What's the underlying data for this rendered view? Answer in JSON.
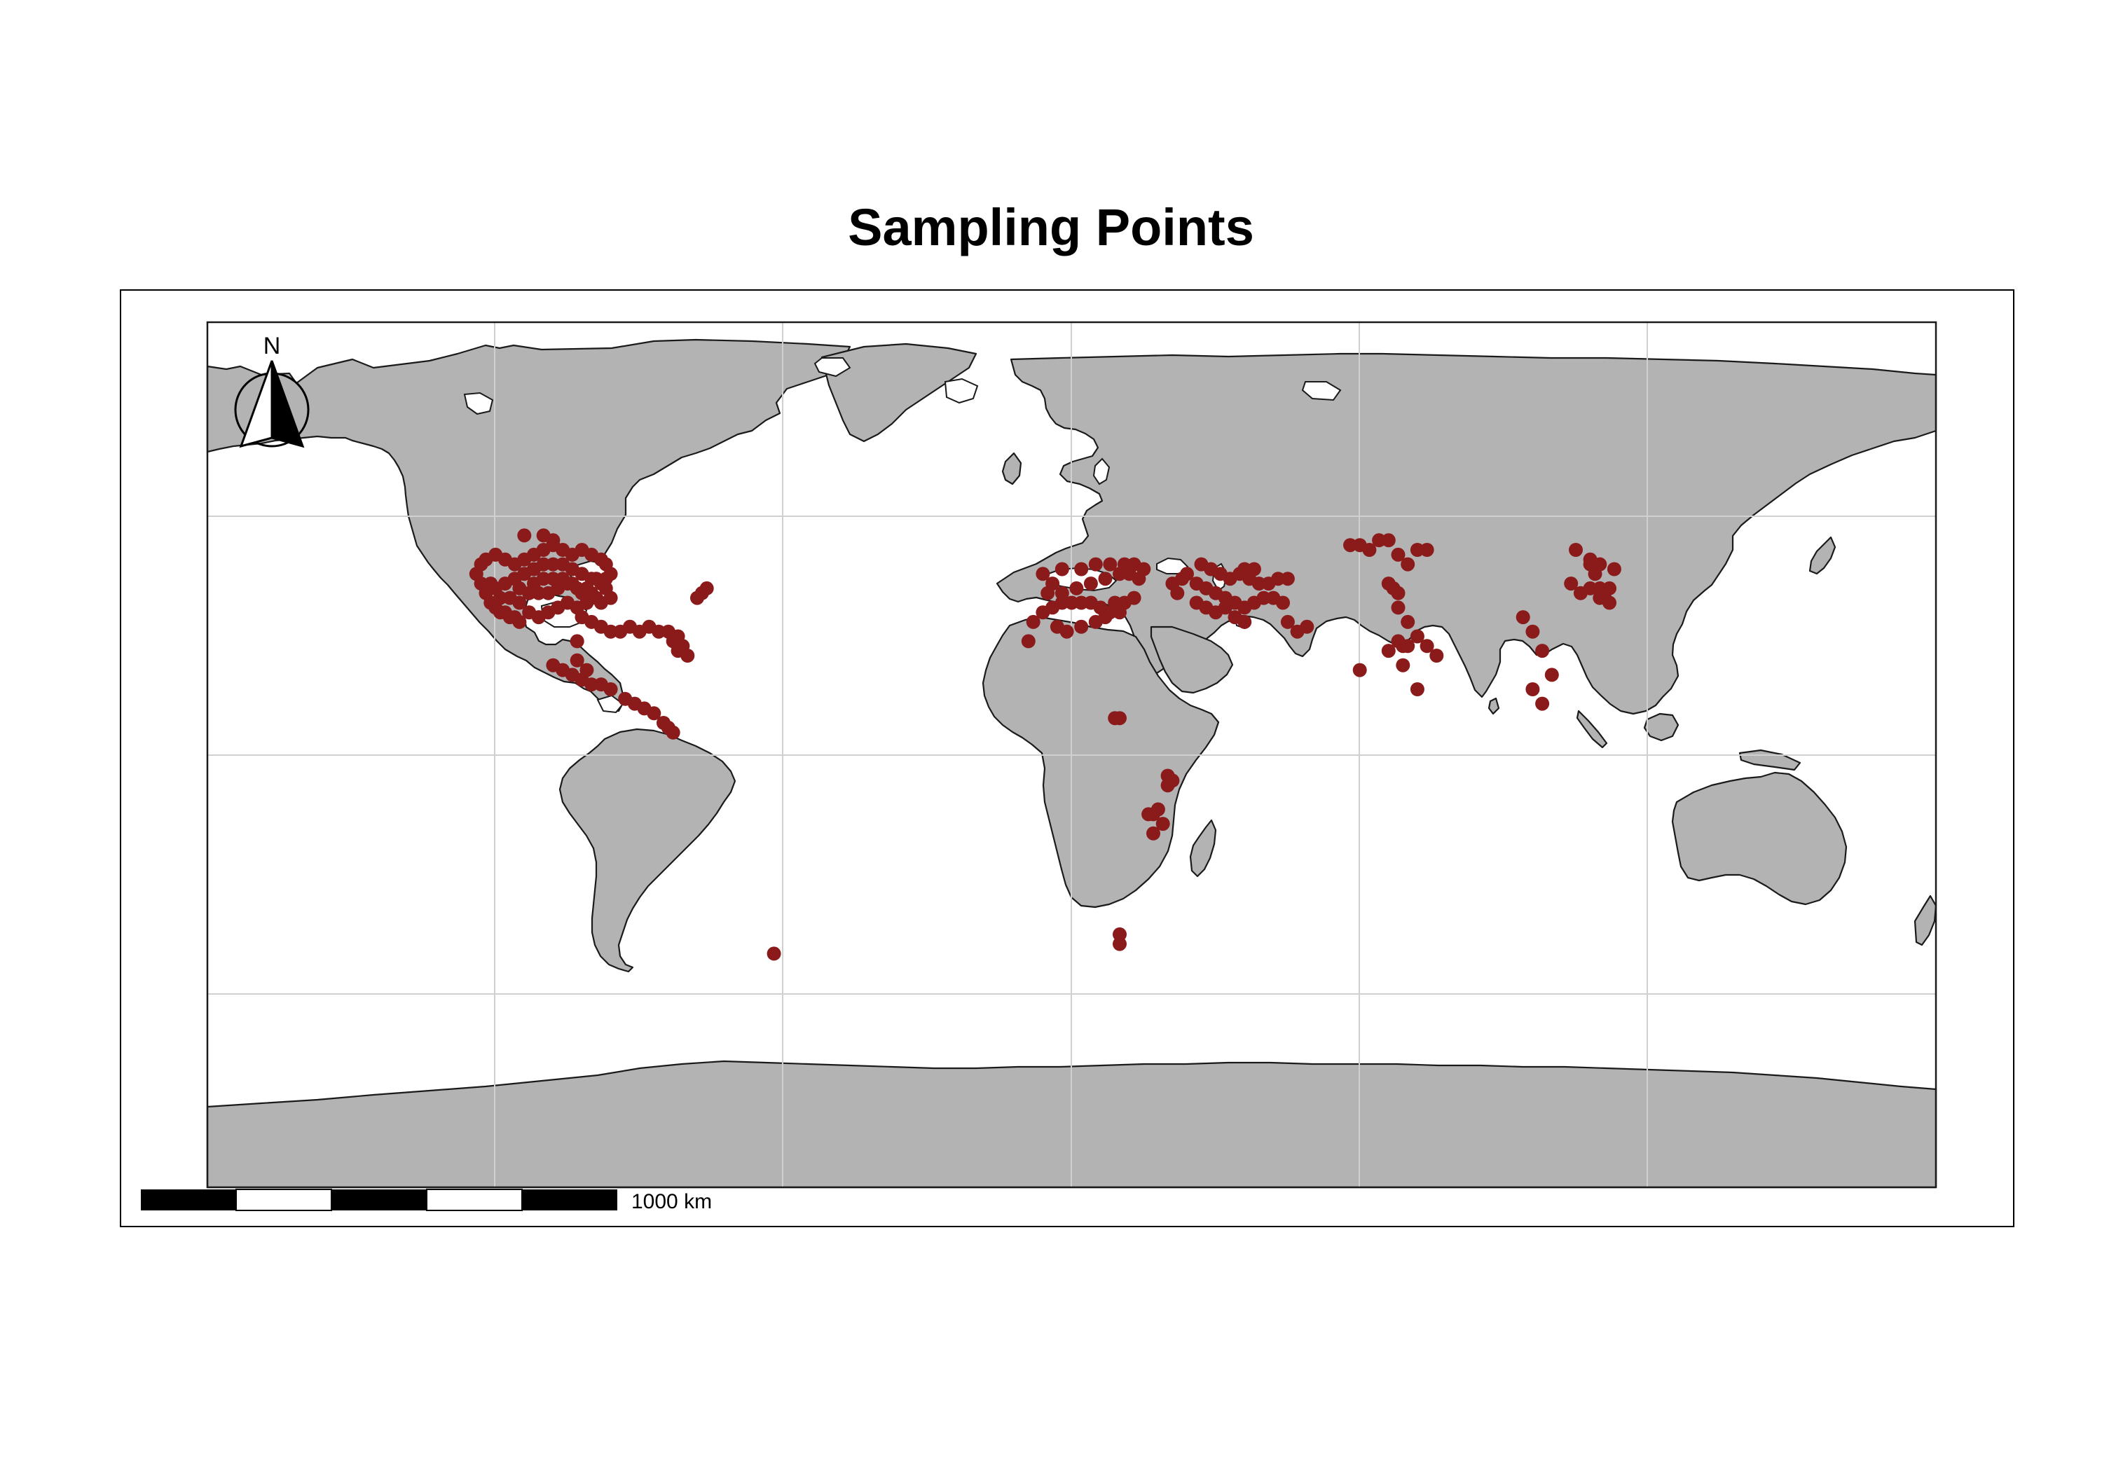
{
  "title": "Sampling Points",
  "map": {
    "land_color": "#b3b3b3",
    "point_color": "#8b1a1a",
    "projection": "equirectangular",
    "graticule": true
  },
  "north_arrow": {
    "label": "N",
    "icon": "north-arrow-icon"
  },
  "scale_bar": {
    "label": "1000 km",
    "segments": 5
  },
  "chart_data": {
    "type": "scatter",
    "title": "Sampling Points",
    "xlabel": "",
    "ylabel": "",
    "xlim": [
      -180,
      180
    ],
    "ylim": [
      -90,
      90
    ],
    "series": [
      {
        "points": [
          [
            -124,
            42
          ],
          [
            -123,
            40
          ],
          [
            -122,
            38
          ],
          [
            -121,
            36
          ],
          [
            -120,
            35
          ],
          [
            -119,
            34
          ],
          [
            -118,
            34
          ],
          [
            -117,
            33
          ],
          [
            -116,
            33
          ],
          [
            -115,
            32
          ],
          [
            -120,
            39
          ],
          [
            -118,
            40
          ],
          [
            -116,
            41
          ],
          [
            -114,
            42
          ],
          [
            -112,
            43
          ],
          [
            -110,
            44
          ],
          [
            -108,
            44
          ],
          [
            -106,
            44
          ],
          [
            -104,
            43
          ],
          [
            -102,
            42
          ],
          [
            -100,
            41
          ],
          [
            -98,
            40
          ],
          [
            -97,
            39
          ],
          [
            -99,
            37
          ],
          [
            -101,
            36
          ],
          [
            -103,
            35
          ],
          [
            -105,
            36
          ],
          [
            -107,
            35
          ],
          [
            -109,
            34
          ],
          [
            -111,
            33
          ],
          [
            -113,
            34
          ],
          [
            -115,
            36
          ],
          [
            -117,
            37
          ],
          [
            -119,
            37
          ],
          [
            -121,
            40
          ],
          [
            -123,
            44
          ],
          [
            -122,
            45
          ],
          [
            -120,
            46
          ],
          [
            -118,
            45
          ],
          [
            -116,
            44
          ],
          [
            -114,
            45
          ],
          [
            -112,
            46
          ],
          [
            -110,
            47
          ],
          [
            -108,
            48
          ],
          [
            -106,
            47
          ],
          [
            -104,
            46
          ],
          [
            -102,
            47
          ],
          [
            -100,
            46
          ],
          [
            -98,
            45
          ],
          [
            -97,
            44
          ],
          [
            -96,
            42
          ],
          [
            -97,
            41
          ],
          [
            -99,
            41
          ],
          [
            -101,
            39
          ],
          [
            -103,
            39
          ],
          [
            -105,
            40
          ],
          [
            -107,
            39
          ],
          [
            -109,
            38
          ],
          [
            -111,
            38
          ],
          [
            -113,
            38
          ],
          [
            -115,
            39
          ],
          [
            -112,
            40
          ],
          [
            -110,
            41
          ],
          [
            -108,
            41
          ],
          [
            -106,
            41
          ],
          [
            -104,
            40
          ],
          [
            -102,
            38
          ],
          [
            -100,
            38
          ],
          [
            -98,
            36
          ],
          [
            -96,
            37
          ],
          [
            -114,
            50
          ],
          [
            -110,
            50
          ],
          [
            -108,
            49
          ],
          [
            -102,
            33
          ],
          [
            -100,
            32
          ],
          [
            -98,
            31
          ],
          [
            -96,
            30
          ],
          [
            -94,
            30
          ],
          [
            -92,
            31
          ],
          [
            -90,
            30
          ],
          [
            -88,
            31
          ],
          [
            -86,
            30
          ],
          [
            -84,
            30
          ],
          [
            -82,
            29
          ],
          [
            -81,
            27
          ],
          [
            -82,
            26
          ],
          [
            -80,
            25
          ],
          [
            -83,
            28
          ],
          [
            -78,
            37
          ],
          [
            -77,
            38
          ],
          [
            -76,
            39
          ],
          [
            -103,
            28
          ],
          [
            -108,
            23
          ],
          [
            -106,
            22
          ],
          [
            -104,
            21
          ],
          [
            -102,
            20
          ],
          [
            -100,
            19
          ],
          [
            -98,
            19
          ],
          [
            -96,
            18
          ],
          [
            -93,
            16
          ],
          [
            -91,
            15
          ],
          [
            -89,
            14
          ],
          [
            -87,
            13
          ],
          [
            -85,
            11
          ],
          [
            -84,
            10
          ],
          [
            -83,
            9
          ],
          [
            -101,
            22
          ],
          [
            -103,
            24
          ],
          [
            -8,
            32
          ],
          [
            -6,
            34
          ],
          [
            -4,
            35
          ],
          [
            -2,
            36
          ],
          [
            0,
            36
          ],
          [
            2,
            36
          ],
          [
            4,
            36
          ],
          [
            6,
            35
          ],
          [
            8,
            34
          ],
          [
            10,
            34
          ],
          [
            -3,
            31
          ],
          [
            -1,
            30
          ],
          [
            2,
            31
          ],
          [
            5,
            32
          ],
          [
            7,
            33
          ],
          [
            9,
            36
          ],
          [
            11,
            36
          ],
          [
            13,
            37
          ],
          [
            -9,
            28
          ],
          [
            -5,
            38
          ],
          [
            -2,
            38
          ],
          [
            1,
            39
          ],
          [
            4,
            40
          ],
          [
            7,
            41
          ],
          [
            10,
            42
          ],
          [
            12,
            42
          ],
          [
            14,
            41
          ],
          [
            -4,
            40
          ],
          [
            -6,
            42
          ],
          [
            -2,
            43
          ],
          [
            2,
            43
          ],
          [
            5,
            44
          ],
          [
            8,
            44
          ],
          [
            11,
            44
          ],
          [
            13,
            44
          ],
          [
            15,
            43
          ],
          [
            24,
            42
          ],
          [
            26,
            40
          ],
          [
            28,
            39
          ],
          [
            30,
            38
          ],
          [
            32,
            37
          ],
          [
            34,
            36
          ],
          [
            36,
            35
          ],
          [
            38,
            36
          ],
          [
            40,
            37
          ],
          [
            26,
            36
          ],
          [
            28,
            35
          ],
          [
            30,
            34
          ],
          [
            32,
            35
          ],
          [
            34,
            33
          ],
          [
            36,
            32
          ],
          [
            27,
            44
          ],
          [
            29,
            43
          ],
          [
            31,
            42
          ],
          [
            33,
            41
          ],
          [
            35,
            42
          ],
          [
            37,
            41
          ],
          [
            39,
            40
          ],
          [
            41,
            40
          ],
          [
            43,
            41
          ],
          [
            45,
            41
          ],
          [
            42,
            37
          ],
          [
            44,
            36
          ],
          [
            45,
            32
          ],
          [
            47,
            30
          ],
          [
            49,
            31
          ],
          [
            22,
            38
          ],
          [
            21,
            40
          ],
          [
            23,
            41
          ],
          [
            36,
            43
          ],
          [
            38,
            43
          ],
          [
            58,
            48
          ],
          [
            60,
            48
          ],
          [
            62,
            47
          ],
          [
            64,
            49
          ],
          [
            66,
            49
          ],
          [
            68,
            46
          ],
          [
            70,
            44
          ],
          [
            72,
            47
          ],
          [
            74,
            47
          ],
          [
            66,
            40
          ],
          [
            67,
            39
          ],
          [
            68,
            38
          ],
          [
            68,
            35
          ],
          [
            70,
            32
          ],
          [
            68,
            28
          ],
          [
            69,
            27
          ],
          [
            70,
            27
          ],
          [
            72,
            29
          ],
          [
            74,
            27
          ],
          [
            76,
            25
          ],
          [
            60,
            22
          ],
          [
            69,
            23
          ],
          [
            72,
            18
          ],
          [
            66,
            26
          ],
          [
            94,
            33
          ],
          [
            96,
            30
          ],
          [
            98,
            26
          ],
          [
            100,
            21
          ],
          [
            96,
            18
          ],
          [
            98,
            15
          ],
          [
            104,
            40
          ],
          [
            106,
            38
          ],
          [
            108,
            39
          ],
          [
            110,
            37
          ],
          [
            111,
            37
          ],
          [
            112,
            36
          ],
          [
            110,
            39
          ],
          [
            112,
            39
          ],
          [
            113,
            43
          ],
          [
            110,
            44
          ],
          [
            108,
            44
          ],
          [
            105,
            47
          ],
          [
            108,
            45
          ],
          [
            109,
            42
          ],
          [
            9,
            12
          ],
          [
            10,
            12
          ],
          [
            20,
            0
          ],
          [
            21,
            -1
          ],
          [
            20,
            -2
          ],
          [
            16,
            -8
          ],
          [
            17,
            -8
          ],
          [
            18,
            -7
          ],
          [
            19,
            -10
          ],
          [
            17,
            -12
          ],
          [
            10,
            -33
          ],
          [
            10,
            -35
          ],
          [
            -62,
            -37
          ]
        ]
      }
    ]
  }
}
